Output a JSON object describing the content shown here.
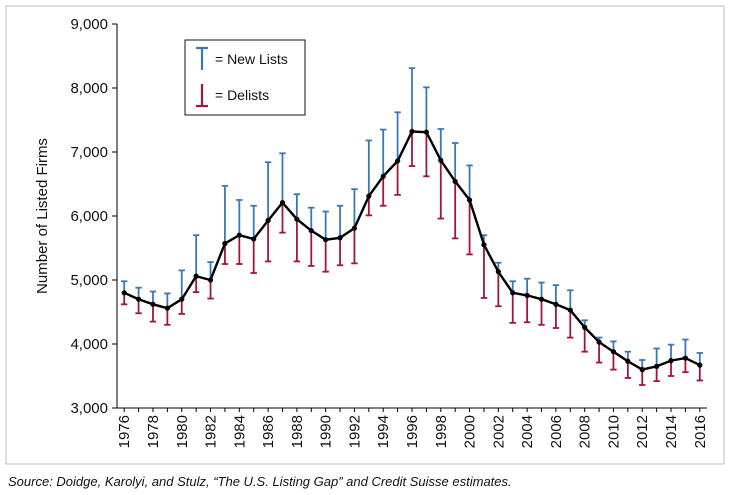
{
  "chart_data": {
    "type": "line",
    "ylabel": "Number of Listed Firms",
    "ylim": [
      3000,
      9000
    ],
    "yticks": [
      3000,
      4000,
      5000,
      6000,
      7000,
      8000,
      9000
    ],
    "ytick_labels": [
      "3,000",
      "4,000",
      "5,000",
      "6,000",
      "7,000",
      "8,000",
      "9,000"
    ],
    "xlim": [
      1975.5,
      2016.5
    ],
    "xticks": [
      1976,
      1978,
      1980,
      1982,
      1984,
      1986,
      1988,
      1990,
      1992,
      1994,
      1996,
      1998,
      2000,
      2002,
      2004,
      2006,
      2008,
      2010,
      2012,
      2014,
      2016
    ],
    "xtick_labels": [
      "1976",
      "1978",
      "1980",
      "1982",
      "1984",
      "1986",
      "1988",
      "1990",
      "1992",
      "1994",
      "1996",
      "1998",
      "2000",
      "2002",
      "2004",
      "2006",
      "2008",
      "2010",
      "2012",
      "2014",
      "2016"
    ],
    "grid": false,
    "legend": {
      "placement": "top-left",
      "entries": [
        {
          "label": "= New Lists",
          "color": "#3a78b5",
          "marker": "up-bar"
        },
        {
          "label": "= Delists",
          "color": "#a3143f",
          "marker": "down-bar"
        }
      ]
    },
    "line_color": "#000000",
    "x": [
      1976,
      1977,
      1978,
      1979,
      1980,
      1981,
      1982,
      1983,
      1984,
      1985,
      1986,
      1987,
      1988,
      1989,
      1990,
      1991,
      1992,
      1993,
      1994,
      1995,
      1996,
      1997,
      1998,
      1999,
      2000,
      2001,
      2002,
      2003,
      2004,
      2005,
      2006,
      2007,
      2008,
      2009,
      2010,
      2011,
      2012,
      2013,
      2014,
      2015,
      2016
    ],
    "series": [
      {
        "values": [
          4800,
          4700,
          4620,
          4560,
          4700,
          5060,
          5000,
          5570,
          5700,
          5640,
          5930,
          6210,
          5950,
          5770,
          5630,
          5660,
          5810,
          6310,
          6620,
          6860,
          7320,
          7310,
          6870,
          6540,
          6250,
          5550,
          5130,
          4800,
          4760,
          4700,
          4620,
          4530,
          4260,
          4030,
          3880,
          3730,
          3600,
          3650,
          3740,
          3780,
          3670
        ]
      },
      {
        "name": "= New Lists",
        "values": [
          4980,
          4880,
          4820,
          4790,
          5150,
          5700,
          5280,
          6470,
          6250,
          6160,
          6840,
          6980,
          6340,
          6130,
          6070,
          6160,
          6420,
          7180,
          7350,
          7620,
          8310,
          8010,
          7360,
          7140,
          6790,
          5700,
          5270,
          4980,
          5020,
          4960,
          4920,
          4840,
          4370,
          4100,
          4040,
          3880,
          3750,
          3930,
          3990,
          4070,
          3860
        ]
      },
      {
        "name": "= Delists",
        "values": [
          4620,
          4480,
          4350,
          4300,
          4470,
          4810,
          4710,
          5250,
          5250,
          5110,
          5290,
          5740,
          5290,
          5220,
          5130,
          5230,
          5260,
          6010,
          6160,
          6330,
          6780,
          6620,
          5960,
          5650,
          5400,
          4720,
          4590,
          4330,
          4340,
          4300,
          4250,
          4100,
          3880,
          3710,
          3600,
          3470,
          3360,
          3420,
          3500,
          3560,
          3430
        ]
      }
    ]
  },
  "footer": {
    "source": "Source: Doidge, Karolyi, and Stulz, “The U.S. Listing Gap” and Credit Suisse estimates."
  }
}
